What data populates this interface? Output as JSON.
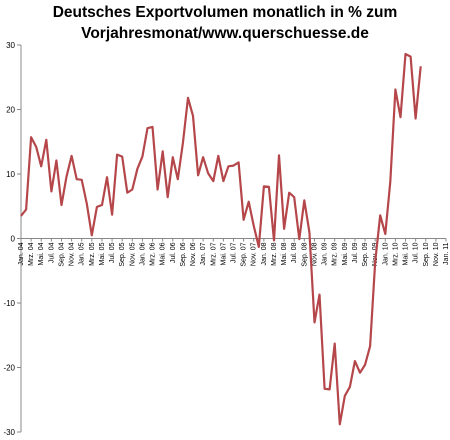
{
  "chart_data": {
    "type": "line",
    "title_lines": [
      "Deutsches Exportvolumen monatlich in % zum",
      "Vorjahresmonat/www.querschuesse.de"
    ],
    "xlabel": "",
    "ylabel": "",
    "ylim": [
      -30,
      30
    ],
    "yticks": [
      30,
      20,
      10,
      0,
      -10,
      -20,
      -30
    ],
    "grid": false,
    "line_color": "#b5474b",
    "x_tick_labels": [
      "Jan. 04",
      "Mrz. 04",
      "Mai. 04",
      "Jul. 04",
      "Sep. 04",
      "Nov. 04",
      "Jan. 05",
      "Mrz. 05",
      "Mai. 05",
      "Jul. 05",
      "Sep. 05",
      "Nov. 05",
      "Jan. 06",
      "Mrz. 06",
      "Mai. 06",
      "Jul. 06",
      "Sep. 06",
      "Nov. 06",
      "Jan. 07",
      "Mrz. 07",
      "Mai. 07",
      "Jul. 07",
      "Sep. 07",
      "Nov. 07",
      "Jan. 08",
      "Mrz. 08",
      "Mai. 08",
      "Jul. 08",
      "Sep. 08",
      "Nov. 08",
      "Jan. 09",
      "Mrz. 09",
      "Mai. 09",
      "Jul. 09",
      "Sep. 09",
      "Nov. 09",
      "Jan. 10",
      "Mrz. 10",
      "Mai. 10",
      "Jul. 10",
      "Sep. 10",
      "Nov. 10",
      "Jan. 11"
    ],
    "series": [
      {
        "values": [
          3.5,
          4.5,
          15.7,
          14.2,
          11.2,
          15.3,
          7.3,
          12.1,
          5.2,
          9.6,
          12.8,
          9.2,
          9.1,
          5.4,
          0.5,
          4.9,
          5.2,
          9.5,
          3.7,
          13.0,
          12.7,
          7.1,
          7.6,
          10.8,
          12.7,
          17.1,
          17.3,
          7.6,
          13.5,
          6.4,
          12.6,
          9.2,
          14.8,
          21.8,
          19.0,
          9.8,
          12.6,
          10.1,
          8.9,
          12.8,
          8.9,
          11.2,
          11.3,
          11.8,
          2.9,
          5.7,
          2.0,
          -1.3,
          8.1,
          8.0,
          -0.3,
          12.9,
          1.5,
          7.1,
          6.4,
          -0.1,
          5.9,
          1.0,
          -13.0,
          -8.7,
          -23.3,
          -23.4,
          -16.3,
          -28.8,
          -24.4,
          -23.0,
          -19.0,
          -20.8,
          -19.6,
          -16.7,
          -3.6,
          3.6,
          0.7,
          8.8,
          23.1,
          18.8,
          28.6,
          28.2,
          18.6,
          26.7
        ]
      }
    ]
  }
}
